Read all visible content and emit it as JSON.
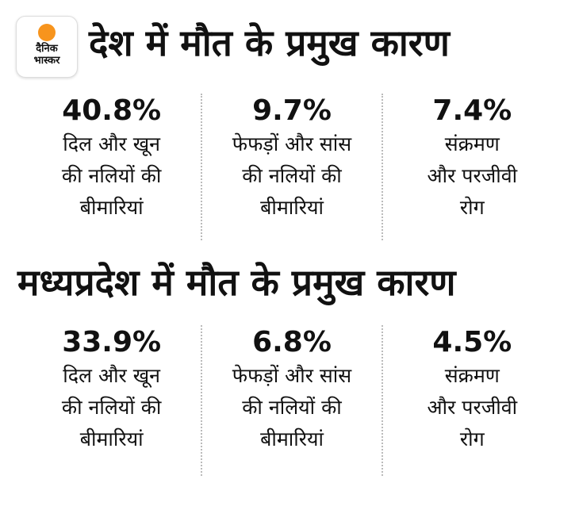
{
  "logo": {
    "text_line1": "दैनिक",
    "text_line2": "भास्कर",
    "sun_color": "#f7941d"
  },
  "sections": [
    {
      "title": "देश में मौत के प्रमुख कारण",
      "stats": [
        {
          "value": "40.8%",
          "label": [
            "दिल और खून",
            "की नलियों की",
            "बीमारियां"
          ]
        },
        {
          "value": "9.7%",
          "label": [
            "फेफड़ों और सांस",
            "की नलियों की",
            "बीमारियां"
          ]
        },
        {
          "value": "7.4%",
          "label": [
            "संक्रमण",
            "और परजीवी",
            "रोग"
          ]
        }
      ]
    },
    {
      "title": "मध्यप्रदेश में मौत के प्रमुख कारण",
      "stats": [
        {
          "value": "33.9%",
          "label": [
            "दिल और खून",
            "की नलियों की",
            "बीमारियां"
          ]
        },
        {
          "value": "6.8%",
          "label": [
            "फेफड़ों और सांस",
            "की नलियों की",
            "बीमारियां"
          ]
        },
        {
          "value": "4.5%",
          "label": [
            "संक्रमण",
            "और परजीवी",
            "रोग"
          ]
        }
      ]
    }
  ]
}
